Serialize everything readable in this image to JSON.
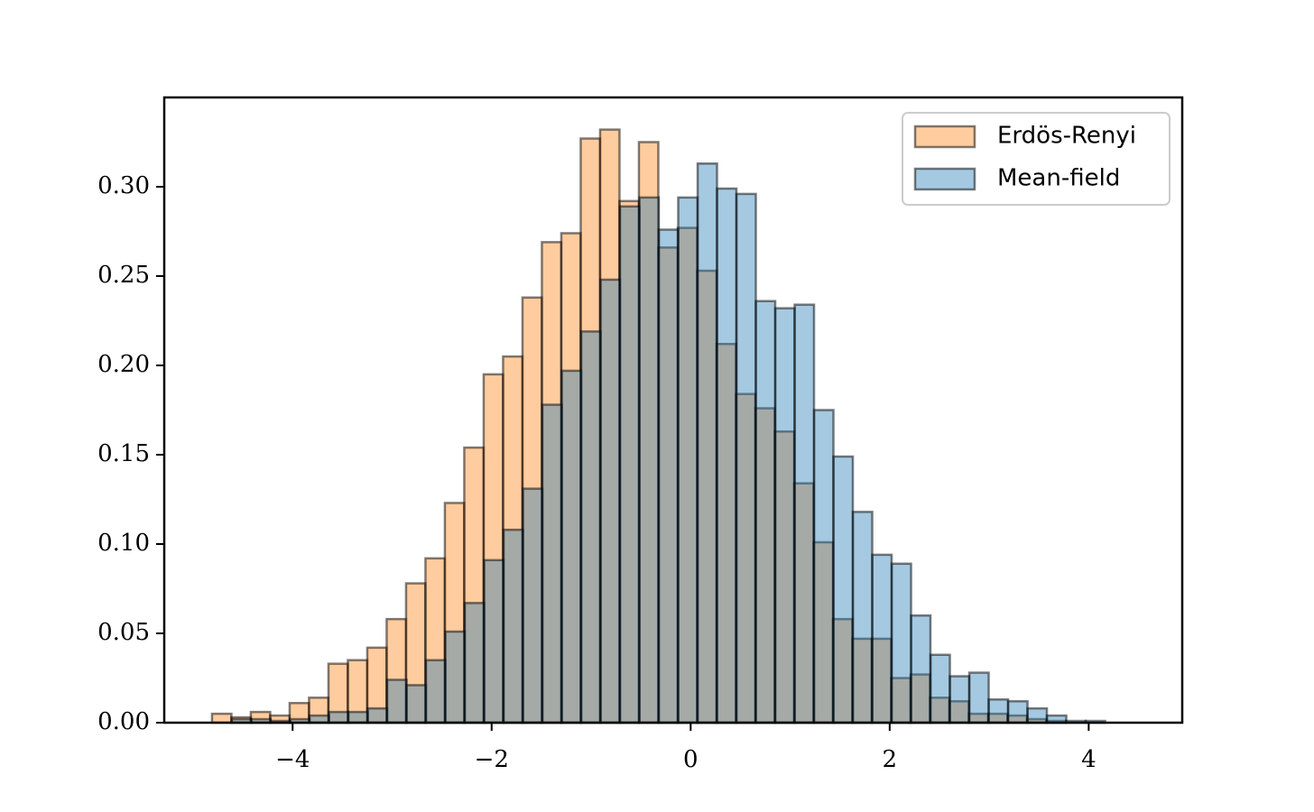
{
  "chart_data": {
    "type": "histogram",
    "xlim": [
      -5.29,
      4.94
    ],
    "ylim": [
      0,
      0.35
    ],
    "xticks": [
      {
        "value": -4,
        "label": "−4"
      },
      {
        "value": -2,
        "label": "−2"
      },
      0,
      2,
      4
    ],
    "yticks": [
      {
        "value": 0,
        "label": "0.00"
      },
      0.05,
      {
        "value": 0.1,
        "label": "0.10"
      },
      0.15,
      {
        "value": 0.2,
        "label": "0.20"
      },
      0.25,
      {
        "value": 0.3,
        "label": "0.30"
      }
    ],
    "legend": "upper right",
    "series": [
      {
        "name": "Erdös-Renyi",
        "color": "#ff7f0e",
        "bins": [
          -4.81,
          -4.615,
          -4.42,
          -4.225,
          -4.03,
          -3.835,
          -3.64,
          -3.445,
          -3.25,
          -3.055,
          -2.86,
          -2.665,
          -2.47,
          -2.275,
          -2.08,
          -1.885,
          -1.69,
          -1.495,
          -1.3,
          -1.105,
          -0.91,
          -0.715,
          -0.52,
          -0.325,
          -0.13,
          0.065,
          0.26,
          0.455,
          0.65,
          0.845,
          1.04,
          1.235,
          1.43,
          1.625,
          1.82,
          2.015,
          2.21,
          2.405,
          2.6,
          2.795,
          2.99,
          3.185,
          3.38,
          3.575,
          3.77
        ],
        "values": [
          0.005,
          0.003,
          0.006,
          0.004,
          0.011,
          0.014,
          0.033,
          0.035,
          0.042,
          0.058,
          0.078,
          0.092,
          0.123,
          0.154,
          0.195,
          0.205,
          0.238,
          0.269,
          0.274,
          0.327,
          0.332,
          0.292,
          0.325,
          0.266,
          0.277,
          0.253,
          0.212,
          0.184,
          0.176,
          0.163,
          0.134,
          0.101,
          0.058,
          0.047,
          0.047,
          0.025,
          0.027,
          0.014,
          0.012,
          0.005,
          0.005,
          0.004,
          0.002,
          0.001
        ]
      },
      {
        "name": "Mean-field",
        "color": "#1f77b4",
        "bins": [
          -4.61,
          -4.415,
          -4.22,
          -4.025,
          -3.83,
          -3.635,
          -3.44,
          -3.245,
          -3.05,
          -2.855,
          -2.66,
          -2.465,
          -2.27,
          -2.075,
          -1.88,
          -1.685,
          -1.49,
          -1.295,
          -1.1,
          -0.905,
          -0.71,
          -0.515,
          -0.32,
          -0.125,
          0.07,
          0.265,
          0.46,
          0.655,
          0.85,
          1.045,
          1.24,
          1.435,
          1.63,
          1.825,
          2.02,
          2.215,
          2.41,
          2.605,
          2.8,
          2.995,
          3.19,
          3.385,
          3.58,
          3.775,
          3.97,
          4.165
        ],
        "values": [
          0.002,
          0.002,
          0.001,
          0.002,
          0.004,
          0.006,
          0.006,
          0.008,
          0.024,
          0.021,
          0.035,
          0.051,
          0.067,
          0.091,
          0.108,
          0.131,
          0.178,
          0.197,
          0.219,
          0.248,
          0.289,
          0.294,
          0.276,
          0.294,
          0.313,
          0.299,
          0.296,
          0.236,
          0.232,
          0.234,
          0.175,
          0.149,
          0.118,
          0.094,
          0.089,
          0.06,
          0.038,
          0.026,
          0.028,
          0.013,
          0.012,
          0.008,
          0.004,
          0.001,
          0.001
        ]
      }
    ]
  }
}
